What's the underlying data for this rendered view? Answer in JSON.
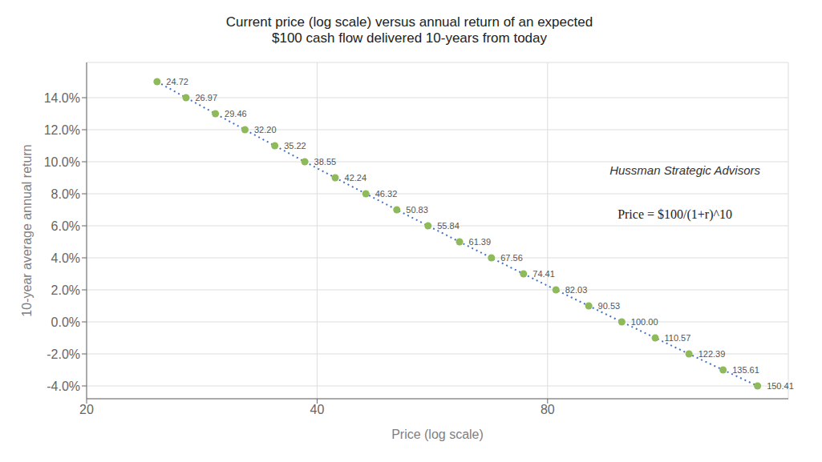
{
  "chart_data": {
    "type": "scatter",
    "title": "Current price (log scale) versus annual return of an expected\n$100 cash flow delivered 10-years from today",
    "x_label": "Price (log scale)",
    "y_label": "10-year average annual return",
    "annotations": [
      "Hussman Strategic Advisors",
      "Price = $100/(1+r)^10"
    ],
    "x": [
      24.72,
      26.97,
      29.46,
      32.2,
      35.22,
      38.55,
      42.24,
      46.32,
      50.83,
      55.84,
      61.39,
      67.56,
      74.41,
      82.03,
      90.53,
      100.0,
      110.57,
      122.39,
      135.61,
      150.41
    ],
    "x_labels": [
      "24.72",
      "26.97",
      "29.46",
      "32.20",
      "35.22",
      "38.55",
      "42.24",
      "46.32",
      "50.83",
      "55.84",
      "61.39",
      "67.56",
      "74.41",
      "82.03",
      "90.53",
      "100.00",
      "110.57",
      "122.39",
      "135.61",
      "150.41"
    ],
    "data_labels": true,
    "series": [
      {
        "type": "line",
        "color": "#4472c4",
        "line_style": "dotted",
        "values": [
          0.15,
          0.14,
          0.13,
          0.12,
          0.11,
          0.1,
          0.09,
          0.08,
          0.07,
          0.06,
          0.05,
          0.04,
          0.03,
          0.02,
          0.01,
          0.0,
          -0.01,
          -0.02,
          -0.03,
          -0.04
        ]
      },
      {
        "type": "scatter",
        "color": "#8fba5a",
        "marker": "circle",
        "values": [
          0.15,
          0.14,
          0.13,
          0.12,
          0.11,
          0.1,
          0.09,
          0.08,
          0.07,
          0.06,
          0.05,
          0.04,
          0.03,
          0.02,
          0.01,
          0.0,
          -0.01,
          -0.02,
          -0.03,
          -0.04
        ]
      }
    ],
    "log": "x",
    "xlim": [
      20,
      165
    ],
    "xticks": [
      20,
      40,
      80
    ],
    "ylim": [
      -0.048,
      0.162
    ],
    "yticks": [
      {
        "value": 0.14,
        "label": "14.0%"
      },
      {
        "value": 0.12,
        "label": "12.0%"
      },
      {
        "value": 0.1,
        "label": "10.0%"
      },
      {
        "value": 0.08,
        "label": "8.0%"
      },
      {
        "value": 0.06,
        "label": "6.0%"
      },
      {
        "value": 0.04,
        "label": "4.0%"
      },
      {
        "value": 0.02,
        "label": "2.0%"
      },
      {
        "value": 0.0,
        "label": "0.0%"
      },
      {
        "value": -0.02,
        "label": "-2.0%"
      },
      {
        "value": -0.04,
        "label": "-4.0%"
      }
    ],
    "grid": true
  }
}
